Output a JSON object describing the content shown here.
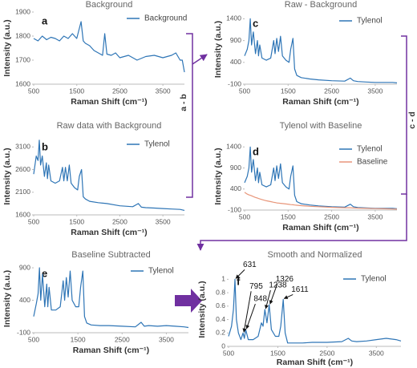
{
  "figure_labels": [
    "a - b",
    "c - d"
  ],
  "chart_data": [
    {
      "type": "line",
      "panel": "a",
      "title": "Background",
      "x_label": "Raman Shift (cm⁻¹)",
      "y_label": "Intensity (a.u.)",
      "legend": "upper right",
      "x": [
        500,
        600,
        700,
        800,
        900,
        1000,
        1100,
        1200,
        1300,
        1400,
        1500,
        1600,
        1650,
        1700,
        1800,
        1900,
        2000,
        2100,
        2150,
        2200,
        2300,
        2400,
        2500,
        2700,
        2900,
        3100,
        3300,
        3500,
        3700,
        3800,
        3900,
        3950,
        4000
      ],
      "series": [
        {
          "name": "Background",
          "color": "#2e75b6",
          "values": [
            1790,
            1780,
            1800,
            1785,
            1795,
            1790,
            1780,
            1800,
            1790,
            1810,
            1790,
            1860,
            1780,
            1770,
            1760,
            1740,
            1730,
            1720,
            1810,
            1725,
            1720,
            1730,
            1710,
            1720,
            1700,
            1715,
            1720,
            1710,
            1720,
            1730,
            1700,
            1700,
            1650
          ]
        }
      ],
      "xlim": [
        500,
        4000
      ],
      "xticks": [
        500,
        1500,
        2500,
        3500
      ],
      "ylim": [
        1600,
        1900
      ],
      "yticks": [
        1600,
        1700,
        1800,
        1900
      ]
    },
    {
      "type": "line",
      "panel": "b",
      "title": "Raw data with Background",
      "x_label": "Raman Shift (cm⁻¹)",
      "y_label": "Intensity (a.u.)",
      "legend": "upper right",
      "x": [
        500,
        560,
        600,
        631,
        660,
        700,
        750,
        795,
        820,
        848,
        900,
        1000,
        1100,
        1168,
        1200,
        1238,
        1280,
        1326,
        1370,
        1450,
        1520,
        1560,
        1611,
        1650,
        1700,
        1800,
        2000,
        2200,
        2500,
        2800,
        2930,
        3000,
        3100,
        3300,
        3500,
        3700,
        3900,
        4000
      ],
      "series": [
        {
          "name": "Tylenol",
          "color": "#2e75b6",
          "values": [
            2500,
            2900,
            2800,
            3250,
            2700,
            2900,
            2450,
            2750,
            2400,
            2700,
            2350,
            2300,
            2350,
            2650,
            2350,
            2650,
            2350,
            2700,
            2300,
            2200,
            2150,
            2450,
            2600,
            2000,
            1950,
            1900,
            1870,
            1850,
            1800,
            1780,
            1850,
            1770,
            1760,
            1750,
            1740,
            1730,
            1720,
            1700
          ]
        }
      ],
      "xlim": [
        500,
        4000
      ],
      "xticks": [
        500,
        1500,
        2500,
        3500
      ],
      "ylim": [
        1600,
        3300
      ],
      "yticks": [
        1600,
        2100,
        2600,
        3100
      ]
    },
    {
      "type": "line",
      "panel": "c",
      "title": "Raw - Background",
      "x_label": "Raman Shift (cm⁻¹)",
      "y_label": "Intensity (a.u.)",
      "legend": "upper right",
      "x": [
        500,
        560,
        600,
        631,
        660,
        700,
        750,
        795,
        820,
        848,
        900,
        1000,
        1100,
        1168,
        1200,
        1238,
        1280,
        1326,
        1370,
        1450,
        1520,
        1560,
        1611,
        1650,
        1700,
        1800,
        2000,
        2200,
        2500,
        2800,
        2930,
        3000,
        3100,
        3300,
        3500,
        3700,
        3900,
        4000
      ],
      "series": [
        {
          "name": "Tylenol",
          "color": "#2e75b6",
          "values": [
            550,
            700,
            900,
            1400,
            800,
            1100,
            600,
            900,
            550,
            800,
            500,
            450,
            500,
            900,
            600,
            950,
            650,
            1000,
            550,
            450,
            400,
            700,
            950,
            250,
            100,
            50,
            20,
            0,
            -20,
            -30,
            40,
            -20,
            -40,
            -50,
            -60,
            -60,
            -60,
            -70
          ]
        }
      ],
      "xlim": [
        500,
        4000
      ],
      "xticks": [
        500,
        1500,
        2500,
        3500
      ],
      "ylim": [
        -100,
        1500
      ],
      "yticks": [
        -100,
        400,
        900,
        1400
      ]
    },
    {
      "type": "line",
      "panel": "d",
      "title": "Tylenol with Baseline",
      "x_label": "Raman Shift (cm⁻¹)",
      "y_label": "Intensity (a.u.)",
      "legend": "upper right",
      "x": [
        500,
        560,
        600,
        631,
        660,
        700,
        750,
        795,
        820,
        848,
        900,
        1000,
        1100,
        1168,
        1200,
        1238,
        1280,
        1326,
        1370,
        1450,
        1520,
        1560,
        1611,
        1650,
        1700,
        1800,
        2000,
        2200,
        2500,
        2800,
        2930,
        3000,
        3100,
        3300,
        3500,
        3700,
        3900,
        4000
      ],
      "series": [
        {
          "name": "Tylenol",
          "color": "#2e75b6",
          "values": [
            550,
            700,
            900,
            1400,
            800,
            1100,
            600,
            900,
            550,
            800,
            500,
            450,
            500,
            900,
            600,
            950,
            650,
            1000,
            550,
            450,
            400,
            700,
            950,
            250,
            100,
            50,
            20,
            0,
            -20,
            -30,
            40,
            -20,
            -40,
            -50,
            -60,
            -60,
            -60,
            -70
          ]
        },
        {
          "name": "Baseline",
          "color": "#e8967a",
          "values": [
            320,
            280,
            260,
            250,
            240,
            220,
            200,
            185,
            175,
            165,
            150,
            120,
            100,
            85,
            80,
            70,
            65,
            60,
            55,
            45,
            35,
            30,
            25,
            20,
            15,
            5,
            -10,
            -20,
            -35,
            -45,
            -45,
            -50,
            -55,
            -60,
            -65,
            -70,
            -75,
            -80
          ]
        }
      ],
      "xlim": [
        500,
        4000
      ],
      "xticks": [
        500,
        1500,
        2500,
        3500
      ],
      "ylim": [
        -100,
        1500
      ],
      "yticks": [
        -100,
        400,
        900,
        1400
      ]
    },
    {
      "type": "line",
      "panel": "e",
      "title": "Baseline Subtracted",
      "x_label": "Raman Shift (cm⁻¹)",
      "y_label": "Intensity (a.u.)",
      "legend": "upper right",
      "x": [
        500,
        560,
        600,
        631,
        660,
        700,
        750,
        795,
        820,
        848,
        900,
        1000,
        1100,
        1168,
        1200,
        1238,
        1280,
        1326,
        1370,
        1450,
        1520,
        1560,
        1611,
        1650,
        1700,
        1800,
        2000,
        2200,
        2500,
        2800,
        2930,
        3000,
        3100,
        3300,
        3500,
        3700,
        3900,
        4000
      ],
      "series": [
        {
          "name": "Tylenol",
          "color": "#2e75b6",
          "values": [
            150,
            350,
            500,
            900,
            400,
            800,
            300,
            650,
            300,
            600,
            250,
            250,
            300,
            700,
            400,
            750,
            450,
            850,
            400,
            300,
            300,
            600,
            850,
            150,
            50,
            20,
            10,
            10,
            0,
            -10,
            60,
            0,
            10,
            0,
            10,
            0,
            -10,
            -20
          ]
        }
      ],
      "xlim": [
        500,
        4000
      ],
      "xticks": [
        500,
        1500,
        2500,
        3500
      ],
      "ylim": [
        -100,
        950
      ],
      "yticks": [
        -100,
        400,
        900
      ]
    },
    {
      "type": "line",
      "panel": "f",
      "title": "Smooth and Normalized",
      "x_label": "Raman Shift (cm⁻¹)",
      "y_label": "Intensity (a.u.)",
      "legend": "upper right",
      "x": [
        500,
        560,
        600,
        631,
        660,
        700,
        750,
        795,
        820,
        848,
        900,
        1000,
        1100,
        1168,
        1200,
        1238,
        1280,
        1326,
        1370,
        1450,
        1520,
        1560,
        1611,
        1650,
        1700,
        1800,
        2000,
        2200,
        2500,
        2800,
        2930,
        3000,
        3100,
        3300,
        3500,
        3700,
        3900,
        4000
      ],
      "series": [
        {
          "name": "Tylenol",
          "color": "#2e75b6",
          "values": [
            0.15,
            0.3,
            0.55,
            1.0,
            0.4,
            0.2,
            0.1,
            0.2,
            0.12,
            0.25,
            0.1,
            0.1,
            0.15,
            0.35,
            0.3,
            0.55,
            0.35,
            0.62,
            0.25,
            0.15,
            0.15,
            0.3,
            0.7,
            0.2,
            0.05,
            0.05,
            0.05,
            0.06,
            0.06,
            0.07,
            0.12,
            0.08,
            0.07,
            0.08,
            0.1,
            0.12,
            0.1,
            0.08
          ]
        }
      ],
      "annotations": [
        {
          "x": 631,
          "y": 1.0
        },
        {
          "x": 795,
          "y": 0.2
        },
        {
          "x": 848,
          "y": 0.25
        },
        {
          "x": 1238,
          "y": 0.55
        },
        {
          "x": 1326,
          "y": 0.62
        },
        {
          "x": 1611,
          "y": 0.7
        }
      ],
      "xlim": [
        500,
        4000
      ],
      "xticks": [
        500,
        1500,
        2500,
        3500
      ],
      "ylim": [
        0,
        1.1
      ],
      "yticks": [
        0,
        0.2,
        0.4,
        0.6,
        0.8,
        1
      ]
    }
  ]
}
